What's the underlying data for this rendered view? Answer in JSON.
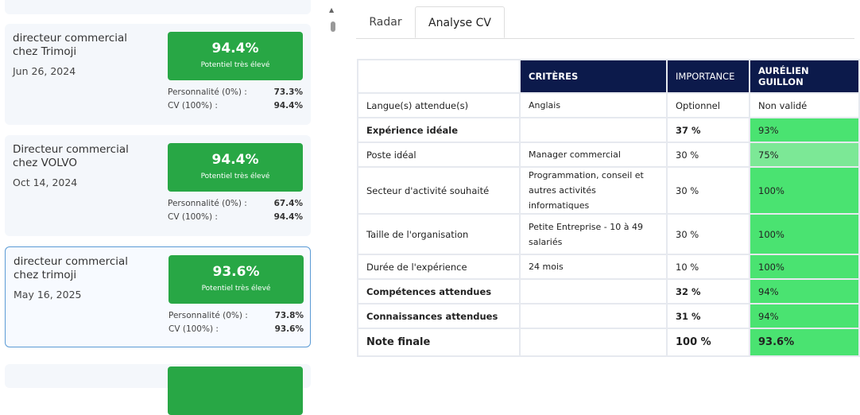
{
  "cards": [
    {
      "title": [
        "directeur commercial",
        "chez Trimoji"
      ],
      "date": "Jun 26, 2024",
      "score": "94.4%",
      "score_label": "Potentiel très élevé",
      "personality_label": "Personnalité (0%) :",
      "personality_value": "73.3%",
      "cv_label": "CV (100%) :",
      "cv_value": "94.4%"
    },
    {
      "title": [
        "Directeur commercial",
        "chez VOLVO"
      ],
      "date": "Oct 14, 2024",
      "score": "94.4%",
      "score_label": "Potentiel très élevé",
      "personality_label": "Personnalité (0%) :",
      "personality_value": "67.4%",
      "cv_label": "CV (100%) :",
      "cv_value": "94.4%"
    },
    {
      "title": [
        "directeur commercial",
        "chez trimoji"
      ],
      "date": "May 16, 2025",
      "score": "93.6%",
      "score_label": "Potentiel très élevé",
      "personality_label": "Personnalité (0%) :",
      "personality_value": "73.8%",
      "cv_label": "CV (100%) :",
      "cv_value": "93.6%"
    }
  ],
  "tabs": [
    "Radar",
    "Analyse CV"
  ],
  "table": {
    "header": [
      "CRITÈRES",
      "IMPORTANCE",
      "AURÉLIEN GUILLON"
    ],
    "rows": [
      [
        "Langue(s) attendue(s)",
        "Anglais",
        "Optionnel",
        "Non validé"
      ],
      [
        "Expérience idéale",
        "",
        "37 %",
        "93%"
      ],
      [
        "Poste idéal",
        "Manager commercial",
        "30 %",
        "75%"
      ],
      [
        "Secteur d'activité souhaité",
        "Programmation, conseil et autres activités informatiques",
        "30 %",
        "100%"
      ],
      [
        "Taille de l'organisation",
        "Petite Entreprise - 10 à 49 salariés",
        "30 %",
        "100%"
      ],
      [
        "Durée de l'expérience",
        "24 mois",
        "10 %",
        "100%"
      ],
      [
        "Compétences attendues",
        "",
        "32 %",
        "94%"
      ],
      [
        "Connaissances attendues",
        "",
        "31 %",
        "94%"
      ],
      [
        "Note finale",
        "",
        "100 %",
        "93.6%"
      ]
    ]
  }
}
